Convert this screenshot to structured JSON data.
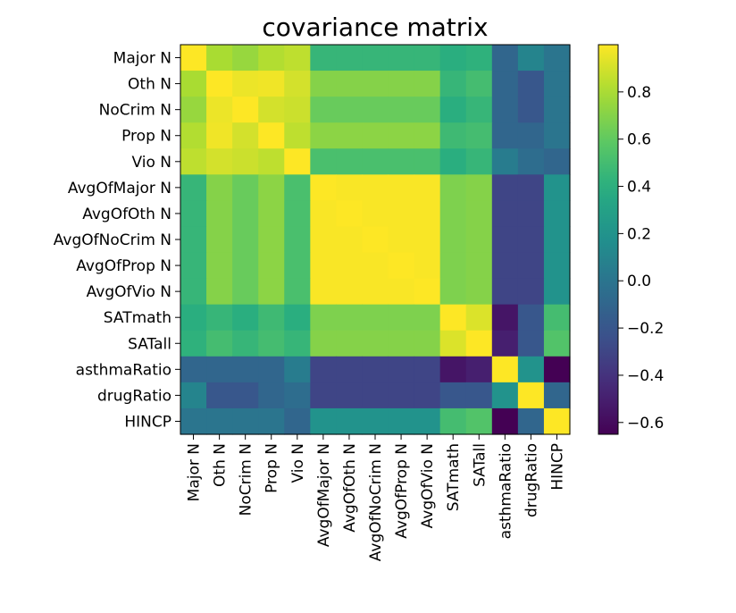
{
  "chart_data": {
    "type": "heatmap",
    "title": "covariance matrix",
    "labels": [
      "Major N",
      "Oth N",
      "NoCrim N",
      "Prop N",
      "Vio N",
      "AvgOfMajor N",
      "AvgOfOth N",
      "AvgOfNoCrim N",
      "AvgOfProp N",
      "AvgOfVio N",
      "SATmath",
      "SATall",
      "asthmaRatio",
      "drugRatio",
      "HINCP"
    ],
    "matrix": [
      [
        1.0,
        0.8,
        0.75,
        0.82,
        0.85,
        0.45,
        0.45,
        0.45,
        0.45,
        0.45,
        0.4,
        0.42,
        -0.1,
        0.1,
        0.0
      ],
      [
        0.8,
        1.0,
        0.96,
        0.97,
        0.9,
        0.7,
        0.7,
        0.7,
        0.7,
        0.7,
        0.45,
        0.5,
        -0.1,
        -0.2,
        0.0
      ],
      [
        0.75,
        0.96,
        1.0,
        0.9,
        0.88,
        0.62,
        0.62,
        0.62,
        0.62,
        0.62,
        0.4,
        0.45,
        -0.1,
        -0.2,
        0.0
      ],
      [
        0.82,
        0.97,
        0.9,
        1.0,
        0.85,
        0.72,
        0.72,
        0.72,
        0.72,
        0.72,
        0.48,
        0.5,
        -0.1,
        -0.1,
        0.0
      ],
      [
        0.85,
        0.9,
        0.88,
        0.85,
        1.0,
        0.52,
        0.52,
        0.52,
        0.52,
        0.52,
        0.4,
        0.45,
        0.05,
        -0.05,
        -0.1
      ],
      [
        0.45,
        0.7,
        0.62,
        0.72,
        0.52,
        1.0,
        0.99,
        0.99,
        0.99,
        0.99,
        0.68,
        0.7,
        -0.3,
        -0.3,
        0.2
      ],
      [
        0.45,
        0.7,
        0.62,
        0.72,
        0.52,
        0.99,
        1.0,
        0.99,
        0.99,
        0.99,
        0.68,
        0.7,
        -0.3,
        -0.3,
        0.2
      ],
      [
        0.45,
        0.7,
        0.62,
        0.72,
        0.52,
        0.99,
        0.99,
        1.0,
        0.99,
        0.99,
        0.68,
        0.7,
        -0.3,
        -0.3,
        0.2
      ],
      [
        0.45,
        0.7,
        0.62,
        0.72,
        0.52,
        0.99,
        0.99,
        0.99,
        1.0,
        0.99,
        0.68,
        0.7,
        -0.3,
        -0.3,
        0.2
      ],
      [
        0.45,
        0.7,
        0.62,
        0.72,
        0.52,
        0.99,
        0.99,
        0.99,
        0.99,
        1.0,
        0.68,
        0.7,
        -0.3,
        -0.3,
        0.2
      ],
      [
        0.4,
        0.45,
        0.4,
        0.48,
        0.4,
        0.68,
        0.68,
        0.68,
        0.68,
        0.68,
        1.0,
        0.92,
        -0.55,
        -0.2,
        0.5
      ],
      [
        0.42,
        0.5,
        0.45,
        0.5,
        0.45,
        0.7,
        0.7,
        0.7,
        0.7,
        0.7,
        0.92,
        1.0,
        -0.5,
        -0.2,
        0.55
      ],
      [
        -0.1,
        -0.1,
        -0.1,
        -0.1,
        0.05,
        -0.3,
        -0.3,
        -0.3,
        -0.3,
        -0.3,
        -0.55,
        -0.5,
        1.0,
        0.2,
        -0.65
      ],
      [
        0.1,
        -0.2,
        -0.2,
        -0.1,
        -0.05,
        -0.3,
        -0.3,
        -0.3,
        -0.3,
        -0.3,
        -0.2,
        -0.2,
        0.2,
        1.0,
        -0.1
      ],
      [
        0.0,
        0.0,
        0.0,
        0.0,
        -0.1,
        0.2,
        0.2,
        0.2,
        0.2,
        0.2,
        0.5,
        0.55,
        -0.65,
        -0.1,
        1.0
      ]
    ],
    "vmin": -0.65,
    "vmax": 1.0,
    "colormap": "viridis",
    "colorbar": {
      "ticks": [
        -0.6,
        -0.4,
        -0.2,
        0.0,
        0.2,
        0.4,
        0.6,
        0.8
      ],
      "tick_labels": [
        "−0.6",
        "−0.4",
        "−0.2",
        "0.0",
        "0.2",
        "0.4",
        "0.6",
        "0.8"
      ]
    },
    "grid": false,
    "colorbar_position": "right"
  }
}
